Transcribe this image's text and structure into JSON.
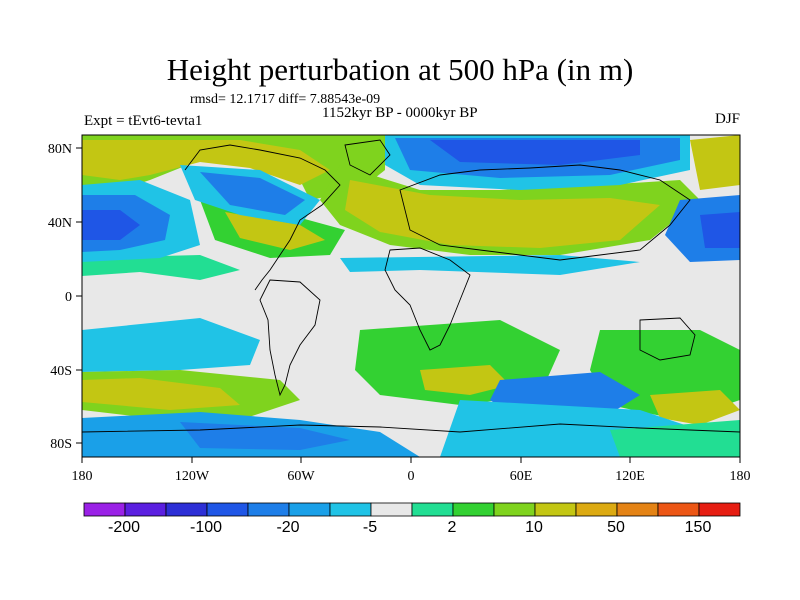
{
  "title": "Height perturbation at 500 hPa (in m)",
  "stats": "rmsd= 12.1717 diff= 7.88543e-09",
  "period": "1152kyr BP - 0000kyr BP",
  "experiment": "Expt = tEvt6-tevta1",
  "season": "DJF",
  "axes": {
    "lat_ticks": [
      "80N",
      "40N",
      "0",
      "40S",
      "80S"
    ],
    "lon_ticks": [
      "180",
      "120W",
      "60W",
      "0",
      "60E",
      "120E",
      "180"
    ]
  },
  "colorbar": {
    "colors": [
      "#9a21e6",
      "#5b1fe0",
      "#2d2fd6",
      "#1f56e6",
      "#1e7ee8",
      "#1aa0e8",
      "#20c3e6",
      "#e8e8e8",
      "#22de93",
      "#33d132",
      "#7fd31e",
      "#c3c613",
      "#dcaa12",
      "#e48315",
      "#ec5615",
      "#e61d12"
    ],
    "labels": [
      "-200",
      "-100",
      "-20",
      "-5",
      "2",
      "10",
      "50",
      "150"
    ]
  }
}
